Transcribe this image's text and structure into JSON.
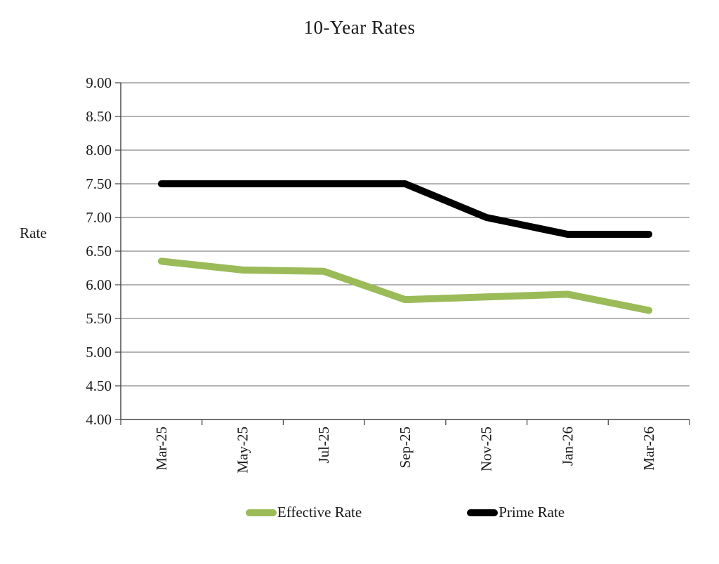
{
  "chart_data": {
    "type": "line",
    "title": "10-Year Rates",
    "xlabel": "",
    "ylabel": "Rate",
    "categories": [
      "Mar-25",
      "May-25",
      "Jul-25",
      "Sep-25",
      "Nov-25",
      "Jan-26",
      "Mar-26"
    ],
    "series": [
      {
        "name": "Effective Rate",
        "color": "#9bbb59",
        "values": [
          6.35,
          6.22,
          6.2,
          5.78,
          5.82,
          5.86,
          5.62
        ]
      },
      {
        "name": "Prime Rate",
        "color": "#000000",
        "values": [
          7.5,
          7.5,
          7.5,
          7.5,
          7.0,
          6.75,
          6.75
        ]
      }
    ],
    "y_axis": {
      "min": 4.0,
      "max": 9.0,
      "step": 0.5,
      "tick_label_format": "two_decimals"
    },
    "x_axis": {
      "label_rotation_degrees": 90
    },
    "grid": "horizontal",
    "legend_position": "bottom",
    "colors": {
      "gridline": "#878787",
      "axis_line": "#4d4d4d",
      "tick": "#4d4d4d",
      "text": "#1a1a1a",
      "background": "#ffffff"
    }
  }
}
